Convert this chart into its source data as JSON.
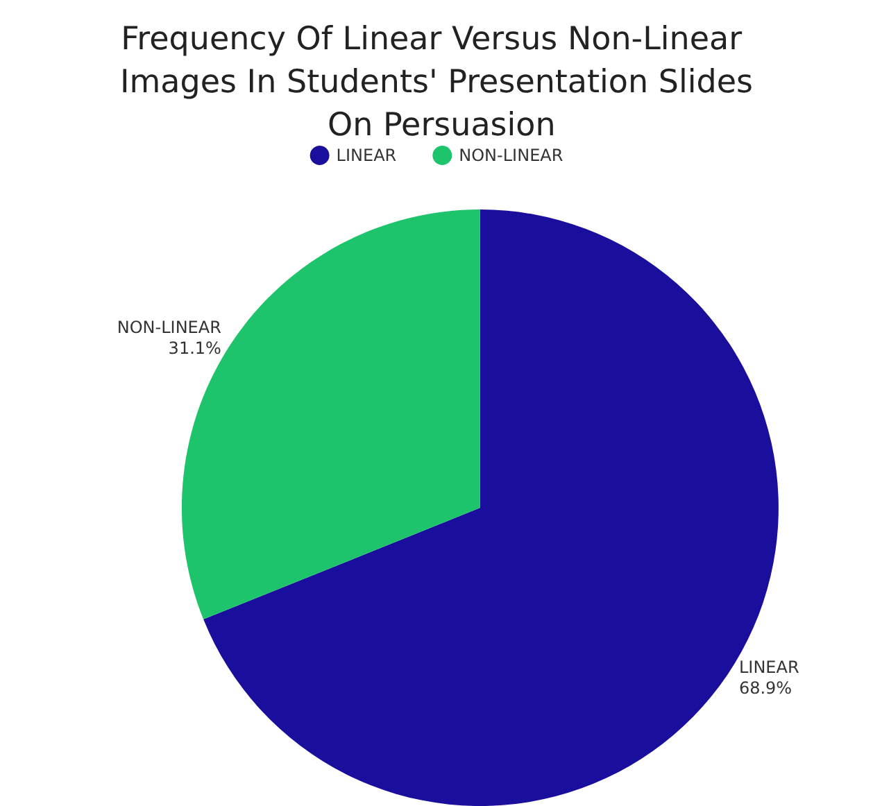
{
  "chart_data": {
    "type": "pie",
    "title": "Frequency Of Linear Versus Non-Linear Images In Students' Presentation Slides On Persuasion",
    "categories": [
      "LINEAR",
      "NON-LINEAR"
    ],
    "values": [
      68.9,
      31.1
    ],
    "colors": [
      "#1a0f9c",
      "#1ec46c"
    ],
    "value_labels": [
      "68.9%",
      "31.1%"
    ],
    "legend": "top"
  }
}
